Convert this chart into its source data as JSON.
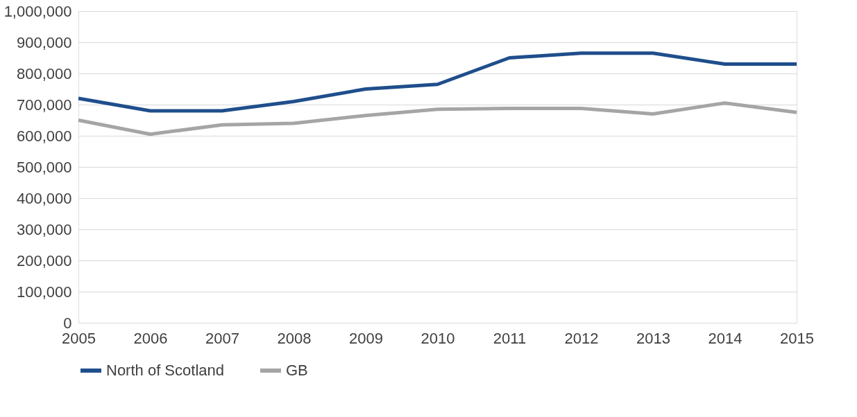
{
  "chart_data": {
    "type": "line",
    "x": [
      2005,
      2006,
      2007,
      2008,
      2009,
      2010,
      2011,
      2012,
      2013,
      2014,
      2015
    ],
    "series": [
      {
        "name": "North of Scotland",
        "color": "#1f4e8c",
        "values": [
          720000,
          680000,
          680000,
          710000,
          750000,
          765000,
          850000,
          865000,
          865000,
          830000,
          830000
        ]
      },
      {
        "name": "GB",
        "color": "#a5a5a5",
        "values": [
          650000,
          605000,
          635000,
          640000,
          665000,
          685000,
          688000,
          688000,
          670000,
          705000,
          675000
        ]
      }
    ],
    "xlim": [
      2005,
      2015
    ],
    "xticks": [
      2005,
      2006,
      2007,
      2008,
      2009,
      2010,
      2011,
      2012,
      2013,
      2014,
      2015
    ],
    "ylim": [
      0,
      1000000
    ],
    "yticks": [
      0,
      {
        "value": 100000,
        "label": "100,000"
      },
      {
        "value": 200000,
        "label": "200,000"
      },
      {
        "value": 300000,
        "label": "300,000"
      },
      {
        "value": 400000,
        "label": "400,000"
      },
      {
        "value": 500000,
        "label": "500,000"
      },
      {
        "value": 600000,
        "label": "600,000"
      },
      {
        "value": 700000,
        "label": "700,000"
      },
      {
        "value": 800000,
        "label": "800,000"
      },
      {
        "value": 900000,
        "label": "900,000"
      },
      {
        "value": 1000000,
        "label": "1,000,000"
      }
    ],
    "grid": "y",
    "legend": "bottom",
    "marker": "none",
    "line_style": "solid"
  }
}
